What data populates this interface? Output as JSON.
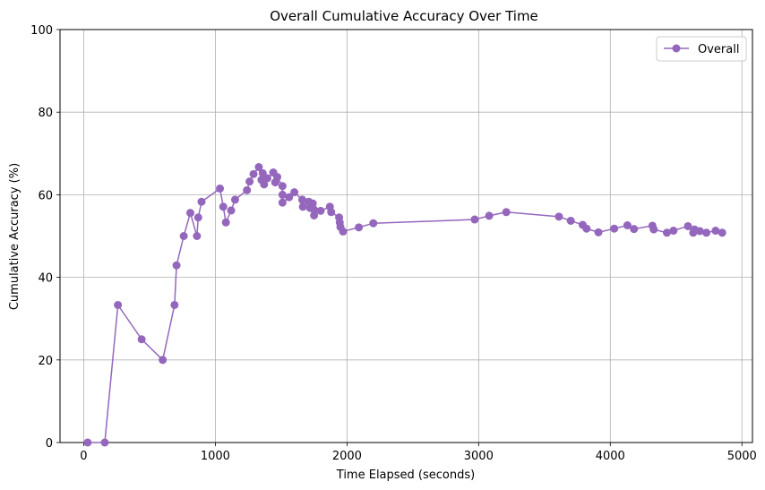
{
  "chart_data": {
    "type": "line",
    "title": "Overall Cumulative Accuracy Over Time",
    "xlabel": "Time Elapsed (seconds)",
    "ylabel": "Cumulative Accuracy (%)",
    "xlim": [
      -180,
      5080
    ],
    "ylim": [
      0,
      100
    ],
    "x_ticks": [
      0,
      1000,
      2000,
      3000,
      4000,
      5000
    ],
    "y_ticks": [
      0,
      20,
      40,
      60,
      80,
      100
    ],
    "grid": true,
    "legend_position": "top-right",
    "marker": "circle",
    "series": [
      {
        "name": "Overall",
        "color": "#9467bd",
        "points": [
          [
            30,
            0
          ],
          [
            160,
            0
          ],
          [
            260,
            33.3
          ],
          [
            440,
            25
          ],
          [
            600,
            20
          ],
          [
            690,
            33.3
          ],
          [
            705,
            42.9
          ],
          [
            760,
            50
          ],
          [
            810,
            55.6
          ],
          [
            860,
            50
          ],
          [
            870,
            54.5
          ],
          [
            895,
            58.3
          ],
          [
            1035,
            61.5
          ],
          [
            1060,
            57.1
          ],
          [
            1080,
            53.3
          ],
          [
            1120,
            56.2
          ],
          [
            1150,
            58.8
          ],
          [
            1240,
            61.1
          ],
          [
            1260,
            63.2
          ],
          [
            1290,
            65
          ],
          [
            1330,
            66.7
          ],
          [
            1350,
            63.6
          ],
          [
            1360,
            65.2
          ],
          [
            1370,
            62.5
          ],
          [
            1395,
            64
          ],
          [
            1440,
            65.4
          ],
          [
            1455,
            63
          ],
          [
            1470,
            64.3
          ],
          [
            1510,
            62.1
          ],
          [
            1510,
            60
          ],
          [
            1510,
            58.1
          ],
          [
            1560,
            59.4
          ],
          [
            1600,
            60.6
          ],
          [
            1660,
            58.8
          ],
          [
            1665,
            57.1
          ],
          [
            1710,
            58.3
          ],
          [
            1720,
            56.8
          ],
          [
            1740,
            57.9
          ],
          [
            1750,
            56.4
          ],
          [
            1750,
            55
          ],
          [
            1800,
            56.1
          ],
          [
            1870,
            57.1
          ],
          [
            1880,
            55.8
          ],
          [
            1940,
            54.5
          ],
          [
            1945,
            53.3
          ],
          [
            1950,
            52.2
          ],
          [
            1970,
            51.1
          ],
          [
            2090,
            52.1
          ],
          [
            2200,
            53.1
          ],
          [
            2970,
            54
          ],
          [
            3080,
            54.9
          ],
          [
            3210,
            55.8
          ],
          [
            3610,
            54.7
          ],
          [
            3700,
            53.7
          ],
          [
            3790,
            52.7
          ],
          [
            3820,
            51.8
          ],
          [
            3910,
            50.9
          ],
          [
            4030,
            51.8
          ],
          [
            4130,
            52.6
          ],
          [
            4180,
            51.7
          ],
          [
            4320,
            52.5
          ],
          [
            4330,
            51.6
          ],
          [
            4430,
            50.8
          ],
          [
            4480,
            51.3
          ],
          [
            4590,
            52.4
          ],
          [
            4630,
            50.8
          ],
          [
            4640,
            51.6
          ],
          [
            4680,
            51.2
          ],
          [
            4730,
            50.8
          ],
          [
            4800,
            51.3
          ],
          [
            4850,
            50.8
          ]
        ]
      }
    ]
  }
}
